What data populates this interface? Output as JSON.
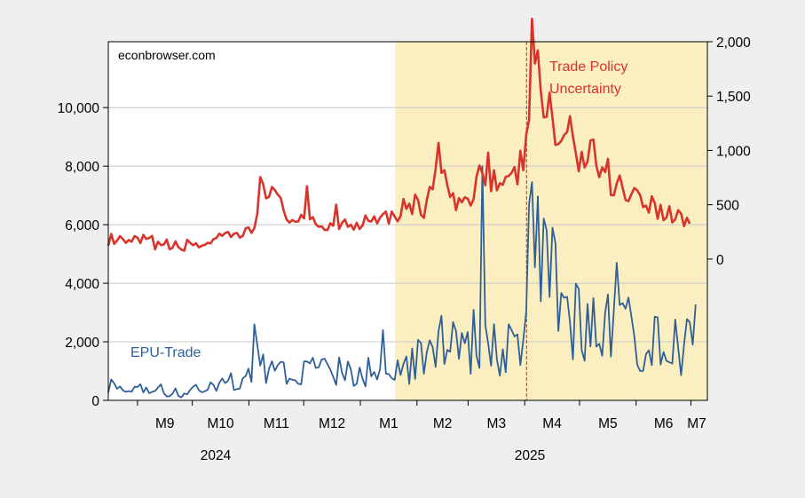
{
  "chart_data": {
    "type": "line",
    "watermark": "econbrowser.com",
    "x_tick_labels": [
      "M9",
      "M10",
      "M11",
      "M12",
      "M1",
      "M2",
      "M3",
      "M4",
      "M5",
      "M6",
      "M7"
    ],
    "year_labels": [
      "2024",
      "2025"
    ],
    "y_left": {
      "ticks": [
        "0",
        "2,000",
        "4,000",
        "6,000",
        "8,000",
        "10,000"
      ],
      "range": [
        0,
        12250
      ]
    },
    "y_right": {
      "ticks": [
        "0",
        "500",
        "1,000",
        "1,500",
        "2,000"
      ],
      "range": [
        -1300,
        2000
      ]
    },
    "shaded_region": {
      "start": "2025-01-20",
      "end": "2025-07-10",
      "color": "#fbefc2"
    },
    "vertical_line": {
      "date": "2025-04-02",
      "color": "#b03030",
      "style": "dashed"
    },
    "series": [
      {
        "name": "Trade Policy Uncertainty",
        "label_line1": "Trade Policy",
        "label_line2": "Uncertainty",
        "axis": "right",
        "color": "#d9342b",
        "anchors": [
          [
            "2024-08-16",
            180
          ],
          [
            "2024-08-25",
            140
          ],
          [
            "2024-09-05",
            170
          ],
          [
            "2024-09-20",
            110
          ],
          [
            "2024-10-05",
            140
          ],
          [
            "2024-10-20",
            190
          ],
          [
            "2024-10-30",
            230
          ],
          [
            "2024-11-05",
            300
          ],
          [
            "2024-11-08",
            860
          ],
          [
            "2024-11-12",
            620
          ],
          [
            "2024-11-20",
            440
          ],
          [
            "2024-12-01",
            320
          ],
          [
            "2024-12-15",
            310
          ],
          [
            "2024-12-30",
            330
          ],
          [
            "2025-01-10",
            420
          ],
          [
            "2025-01-20",
            400
          ],
          [
            "2025-01-28",
            520
          ],
          [
            "2025-02-05",
            450
          ],
          [
            "2025-02-12",
            860
          ],
          [
            "2025-02-18",
            600
          ],
          [
            "2025-02-25",
            440
          ],
          [
            "2025-03-05",
            720
          ],
          [
            "2025-03-10",
            880
          ],
          [
            "2025-03-20",
            620
          ],
          [
            "2025-03-27",
            720
          ],
          [
            "2025-04-01",
            1000
          ],
          [
            "2025-04-05",
            1820
          ],
          [
            "2025-04-10",
            1520
          ],
          [
            "2025-04-15",
            1250
          ],
          [
            "2025-04-25",
            1100
          ],
          [
            "2025-05-05",
            960
          ],
          [
            "2025-05-15",
            800
          ],
          [
            "2025-05-25",
            660
          ],
          [
            "2025-06-05",
            560
          ],
          [
            "2025-06-15",
            440
          ],
          [
            "2025-06-25",
            390
          ],
          [
            "2025-07-01",
            340
          ]
        ],
        "spikes": [
          [
            "2024-11-08",
            880
          ],
          [
            "2024-12-03",
            670
          ],
          [
            "2024-12-19",
            500
          ],
          [
            "2025-02-13",
            1070
          ],
          [
            "2025-03-12",
            980
          ],
          [
            "2025-04-08",
            1920
          ],
          [
            "2025-04-18",
            1050
          ],
          [
            "2025-05-08",
            1100
          ],
          [
            "2025-06-24",
            450
          ]
        ]
      },
      {
        "name": "EPU-Trade",
        "label": "EPU-Trade",
        "axis": "left",
        "color": "#2e5f99",
        "anchors": [
          [
            "2024-08-16",
            500
          ],
          [
            "2024-08-25",
            350
          ],
          [
            "2024-09-10",
            300
          ],
          [
            "2024-09-25",
            350
          ],
          [
            "2024-10-10",
            450
          ],
          [
            "2024-10-25",
            650
          ],
          [
            "2024-11-05",
            1400
          ],
          [
            "2024-11-15",
            1200
          ],
          [
            "2024-11-30",
            900
          ],
          [
            "2024-12-15",
            1000
          ],
          [
            "2024-12-30",
            950
          ],
          [
            "2025-01-10",
            1100
          ],
          [
            "2025-01-20",
            900
          ],
          [
            "2025-02-01",
            1400
          ],
          [
            "2025-02-15",
            1900
          ],
          [
            "2025-03-01",
            1800
          ],
          [
            "2025-03-10",
            2600
          ],
          [
            "2025-03-20",
            1600
          ],
          [
            "2025-04-01",
            2000
          ],
          [
            "2025-04-05",
            4900
          ],
          [
            "2025-04-15",
            3800
          ],
          [
            "2025-04-25",
            2900
          ],
          [
            "2025-05-10",
            2300
          ],
          [
            "2025-05-25",
            2400
          ],
          [
            "2025-06-10",
            2000
          ],
          [
            "2025-06-25",
            1800
          ],
          [
            "2025-07-05",
            2200
          ]
        ],
        "spikes": [
          [
            "2024-11-04",
            2600
          ],
          [
            "2024-12-18",
            3300
          ],
          [
            "2025-01-14",
            2400
          ],
          [
            "2025-03-09",
            8000
          ],
          [
            "2025-04-04",
            6700
          ],
          [
            "2025-04-16",
            5900
          ],
          [
            "2025-05-22",
            4700
          ],
          [
            "2025-07-05",
            3400
          ]
        ]
      }
    ]
  }
}
